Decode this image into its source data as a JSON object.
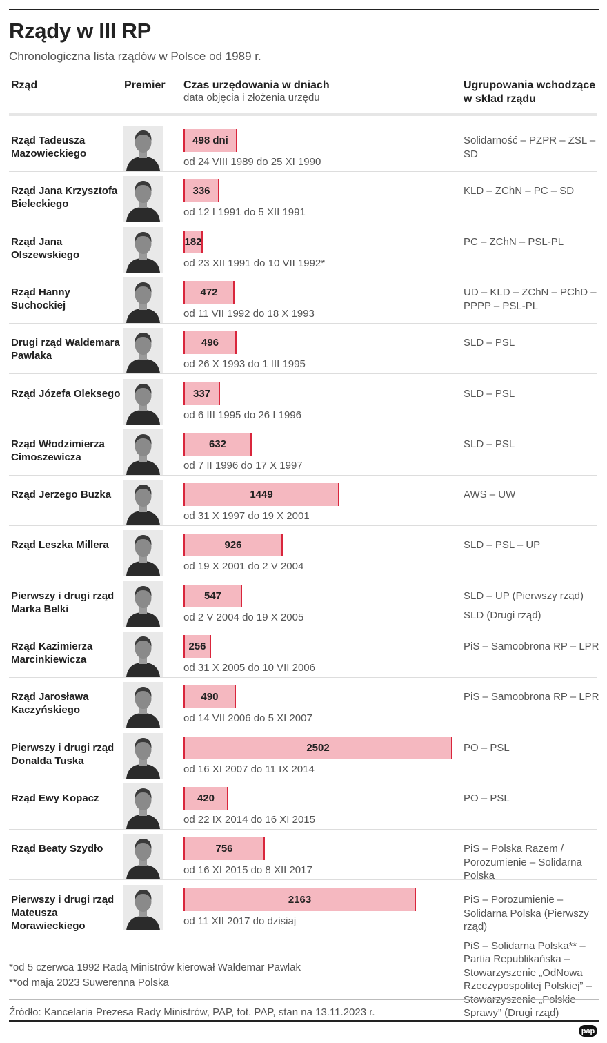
{
  "title": "Rządy w III RP",
  "subtitle": "Chronologiczna lista rządów w Polsce od 1989 r.",
  "columns": {
    "government": "Rząd",
    "premier": "Premier",
    "duration": "Czas urzędowania w dniach",
    "duration_sub": "data objęcia i złożenia urzędu",
    "parties": "Ugrupowania wchodzące w skład rządu"
  },
  "chart_data": {
    "type": "bar",
    "orientation": "horizontal",
    "unit": "dni",
    "xlim": [
      0,
      2502
    ],
    "categories": [
      "Rząd Tadeusza Mazowieckiego",
      "Rząd Jana Krzysztofa Bieleckiego",
      "Rząd Jana Olszewskiego",
      "Rząd Hanny Suchockiej",
      "Drugi rząd Waldemara Pawlaka",
      "Rząd Józefa Oleksego",
      "Rząd Włodzimierza Cimoszewicza",
      "Rząd Jerzego Buzka",
      "Rząd Leszka Millera",
      "Pierwszy i drugi rząd Marka Belki",
      "Rząd Kazimierza Marcinkiewicza",
      "Rząd Jarosława Kaczyńskiego",
      "Pierwszy i drugi rząd Donalda Tuska",
      "Rząd Ewy Kopacz",
      "Rząd Beaty Szydło",
      "Pierwszy i drugi rząd Mateusza Morawieckiego"
    ],
    "values": [
      498,
      336,
      182,
      472,
      496,
      337,
      632,
      1449,
      926,
      547,
      256,
      490,
      2502,
      420,
      756,
      2163
    ]
  },
  "rows": [
    {
      "name": "Rząd Tadeusza Mazowieckiego",
      "bar_label": "498 dni",
      "dates": "od 24 VIII 1989 do 25 XI 1990",
      "parties": [
        "Solidarność – PZPR – ZSL – SD"
      ]
    },
    {
      "name": "Rząd Jana Krzysztofa Bieleckiego",
      "bar_label": "336",
      "dates": "od 12 I 1991 do 5 XII 1991",
      "parties": [
        "KLD – ZChN – PC – SD"
      ]
    },
    {
      "name": "Rząd Jana Olszewskiego",
      "bar_label": "182",
      "dates": "od 23 XII 1991 do 10 VII 1992*",
      "parties": [
        "PC – ZChN – PSL-PL"
      ]
    },
    {
      "name": "Rząd Hanny Suchockiej",
      "bar_label": "472",
      "dates": "od 11 VII 1992 do 18 X 1993",
      "parties": [
        "UD – KLD – ZChN – PChD – PPPP – PSL-PL"
      ]
    },
    {
      "name": "Drugi rząd Waldemara Pawlaka",
      "bar_label": "496",
      "dates": "od 26 X 1993 do 1 III 1995",
      "parties": [
        "SLD – PSL"
      ]
    },
    {
      "name": "Rząd Józefa Oleksego",
      "bar_label": "337",
      "dates": "od 6 III 1995 do 26 I 1996",
      "parties": [
        "SLD – PSL"
      ]
    },
    {
      "name": "Rząd Włodzimierza Cimoszewicza",
      "bar_label": "632",
      "dates": "od 7 II 1996 do 17 X 1997",
      "parties": [
        "SLD – PSL"
      ]
    },
    {
      "name": "Rząd Jerzego Buzka",
      "bar_label": "1449",
      "dates": "od 31 X 1997 do 19 X 2001",
      "parties": [
        "AWS – UW"
      ]
    },
    {
      "name": "Rząd Leszka Millera",
      "bar_label": "926",
      "dates": "od 19 X 2001 do 2 V 2004",
      "parties": [
        "SLD – PSL – UP"
      ]
    },
    {
      "name": "Pierwszy i drugi rząd Marka Belki",
      "bar_label": "547",
      "dates": "od 2 V 2004 do 19 X 2005",
      "parties": [
        "SLD – UP (Pierwszy rząd)",
        "SLD (Drugi rząd)"
      ]
    },
    {
      "name": "Rząd Kazimierza Marcinkiewicza",
      "bar_label": "256",
      "dates": "od 31 X 2005 do 10 VII 2006",
      "parties": [
        "PiS – Samoobrona RP – LPR"
      ]
    },
    {
      "name": "Rząd Jarosława Kaczyńskiego",
      "bar_label": "490",
      "dates": "od 14 VII 2006 do 5 XI 2007",
      "parties": [
        "PiS – Samoobrona RP – LPR"
      ]
    },
    {
      "name": "Pierwszy i drugi rząd Donalda Tuska",
      "bar_label": "2502",
      "dates": "od 16 XI 2007 do 11 IX 2014",
      "parties": [
        "PO – PSL"
      ]
    },
    {
      "name": "Rząd Ewy Kopacz",
      "bar_label": "420",
      "dates": "od 22 IX 2014 do 16 XI 2015",
      "parties": [
        "PO – PSL"
      ]
    },
    {
      "name": "Rząd Beaty Szydło",
      "bar_label": "756",
      "dates": "od 16 XI 2015 do 8 XII 2017",
      "parties": [
        "PiS – Polska Razem / Porozumienie – Solidarna Polska"
      ]
    },
    {
      "name": "Pierwszy i drugi rząd Mateusza Morawieckiego",
      "bar_label": "2163",
      "dates": "od 11 XII 2017 do dzisiaj",
      "parties": [
        "PiS – Porozumienie – Solidarna Polska (Pierwszy rząd)",
        "PiS – Solidarna Polska** – Partia Republikańska – Stowarzyszenie „OdNowa Rzeczypospolitej Polskiej” – Stowarzyszenie „Polskie Sprawy” (Drugi rząd)"
      ]
    }
  ],
  "footnotes": [
    "*od 5 czerwca 1992 Radą Ministrów kierował Waldemar Pawlak",
    "**od maja 2023 Suwerenna Polska"
  ],
  "source": "Źródło: Kancelaria Prezesa Rady Ministrów, PAP, fot. PAP, stan na 13.11.2023 r.",
  "logo": "pap",
  "colors": {
    "bar_fill": "#f5b8c0",
    "bar_edge": "#d9263c",
    "text": "#222222",
    "muted": "#555555"
  }
}
